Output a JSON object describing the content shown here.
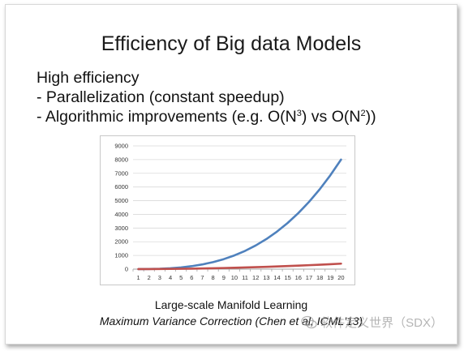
{
  "slide": {
    "title": "Efficiency of Big data Models",
    "heading": "High efficiency",
    "bullet1": "- Parallelization (constant speedup)",
    "bullet2_prefix": "- Algorithmic improvements (e.g. O(N",
    "bullet2_exp1": "3",
    "bullet2_mid": ") vs O(N",
    "bullet2_exp2": "2",
    "bullet2_suffix": "))",
    "caption_line1": "Large-scale Manifold Learning",
    "caption_line2": "Maximum Variance Correction (Chen et al, ICML'13)"
  },
  "watermark": {
    "text": "软件定义世界（SDX）",
    "icon": "wechat-logo-icon"
  },
  "colors": {
    "series_cubic": "#4f81bd",
    "series_square": "#c0504d",
    "gridline": "#d9d9d9"
  },
  "chart_data": {
    "type": "line",
    "title": "",
    "xlabel": "",
    "ylabel": "",
    "ylim": [
      0,
      9000
    ],
    "yticks": [
      0,
      1000,
      2000,
      3000,
      4000,
      5000,
      6000,
      7000,
      8000,
      9000
    ],
    "x": [
      1,
      2,
      3,
      4,
      5,
      6,
      7,
      8,
      9,
      10,
      11,
      12,
      13,
      14,
      15,
      16,
      17,
      18,
      19,
      20
    ],
    "grid": "horizontal",
    "legend": "none",
    "series": [
      {
        "values": [
          1,
          8,
          27,
          64,
          125,
          216,
          343,
          512,
          729,
          1000,
          1331,
          1728,
          2197,
          2744,
          3375,
          4096,
          4913,
          5832,
          6859,
          8000
        ]
      },
      {
        "values": [
          1,
          4,
          9,
          16,
          25,
          36,
          49,
          64,
          81,
          100,
          121,
          144,
          169,
          196,
          225,
          256,
          289,
          324,
          361,
          400
        ]
      }
    ]
  }
}
